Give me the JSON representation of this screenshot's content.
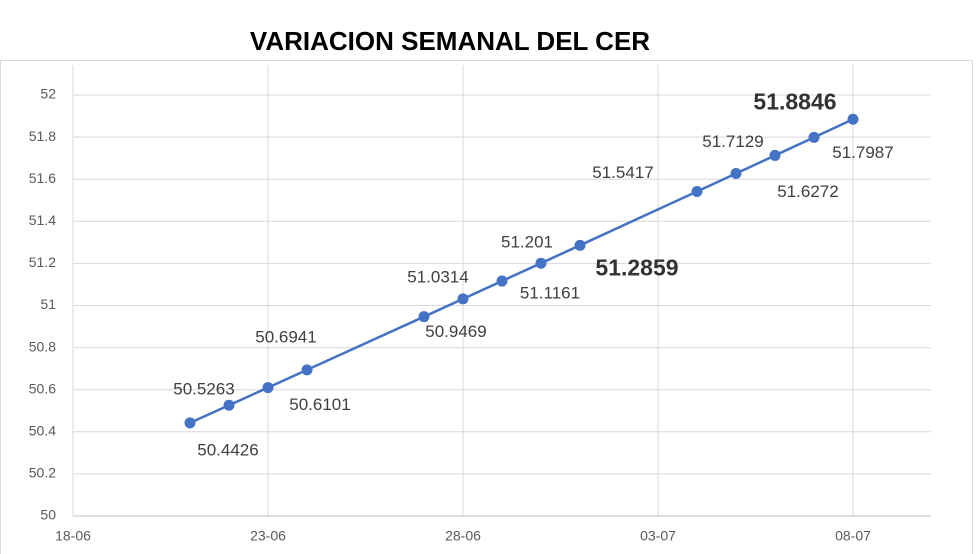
{
  "chart_data": {
    "type": "line",
    "title": "VARIACION SEMANAL DEL CER",
    "x": [
      "21-06",
      "22-06",
      "23-06",
      "24-06",
      "27-06",
      "28-06",
      "29-06",
      "30-06",
      "01-07",
      "04-07",
      "05-07",
      "06-07",
      "07-07",
      "08-07"
    ],
    "series": [
      {
        "name": "CER",
        "color": "#4472c4",
        "values": [
          50.4426,
          50.5263,
          50.6101,
          50.6941,
          50.9469,
          51.0314,
          51.1161,
          51.201,
          51.2859,
          51.5417,
          51.6272,
          51.7129,
          51.7987,
          51.8846
        ]
      }
    ],
    "xlim": [
      "18-06",
      "10-07"
    ],
    "xticks": [
      "18-06",
      "23-06",
      "28-06",
      "03-07",
      "08-07"
    ],
    "ylim": [
      50,
      52
    ],
    "yticks": [
      50,
      50.2,
      50.4,
      50.6,
      50.8,
      51,
      51.2,
      51.4,
      51.6,
      51.8,
      52
    ],
    "grid": true
  }
}
